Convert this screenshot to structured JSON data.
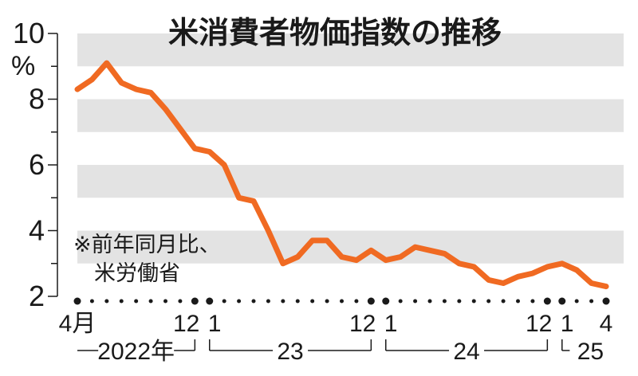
{
  "chart_data": {
    "type": "line",
    "title": "米消費者物価指数の推移",
    "unit": "%",
    "note_lines": [
      "※前年同月比、",
      "米労働省"
    ],
    "ylim": [
      2,
      10
    ],
    "yticks": [
      "2",
      "4",
      "6",
      "8",
      "10"
    ],
    "x": [
      "2022-04",
      "2022-05",
      "2022-06",
      "2022-07",
      "2022-08",
      "2022-09",
      "2022-10",
      "2022-11",
      "2022-12",
      "2023-01",
      "2023-02",
      "2023-03",
      "2023-04",
      "2023-05",
      "2023-06",
      "2023-07",
      "2023-08",
      "2023-09",
      "2023-10",
      "2023-11",
      "2023-12",
      "2024-01",
      "2024-02",
      "2024-03",
      "2024-04",
      "2024-05",
      "2024-06",
      "2024-07",
      "2024-08",
      "2024-09",
      "2024-10",
      "2024-11",
      "2024-12",
      "2025-01",
      "2025-02",
      "2025-03",
      "2025-04"
    ],
    "series": [
      {
        "values": [
          8.3,
          8.6,
          9.1,
          8.5,
          8.3,
          8.2,
          7.7,
          7.1,
          6.5,
          6.4,
          6.0,
          5.0,
          4.9,
          4.0,
          3.0,
          3.2,
          3.7,
          3.7,
          3.2,
          3.1,
          3.4,
          3.1,
          3.2,
          3.5,
          3.4,
          3.3,
          3.0,
          2.9,
          2.5,
          2.4,
          2.6,
          2.7,
          2.9,
          3.0,
          2.8,
          2.4,
          2.3
        ],
        "color": "#f06a22"
      }
    ],
    "xtick_labels": [
      {
        "index": 0,
        "text": "4月"
      },
      {
        "index": 8,
        "text": "12"
      },
      {
        "index": 9,
        "text": "1"
      },
      {
        "index": 20,
        "text": "12"
      },
      {
        "index": 21,
        "text": "1"
      },
      {
        "index": 32,
        "text": "12"
      },
      {
        "index": 33,
        "text": "1"
      },
      {
        "index": 36,
        "text": "4"
      }
    ],
    "year_groups": [
      {
        "label": "2022年",
        "start": 0,
        "end": 8
      },
      {
        "label": "23",
        "start": 9,
        "end": 20
      },
      {
        "label": "24",
        "start": 21,
        "end": 32
      },
      {
        "label": "25",
        "start": 33,
        "end": 36
      }
    ],
    "major_dot_indices": [
      0,
      8,
      9,
      20,
      21,
      32,
      33,
      36
    ],
    "band_color": "#e3e3e3",
    "grid": false,
    "legend": "none"
  }
}
